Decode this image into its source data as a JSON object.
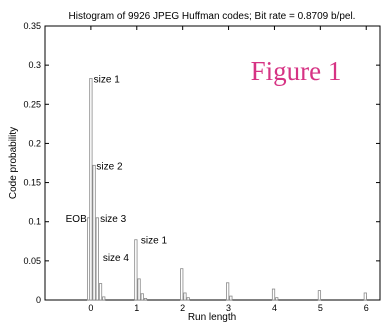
{
  "chart_data": {
    "type": "bar",
    "title": "Histogram of 9926 JPEG Huffman codes; Bit rate = 0.8709 b/pel.",
    "overlay_label": "Figure 1",
    "xlabel": "Run length",
    "ylabel": "Code probability",
    "xlim": [
      -1,
      6.3
    ],
    "ylim": [
      0,
      0.35
    ],
    "xticks": [
      0,
      1,
      2,
      3,
      4,
      5,
      6
    ],
    "yticks": [
      0,
      0.05,
      0.1,
      0.15,
      0.2,
      0.25,
      0.3,
      0.35
    ],
    "ytick_labels": [
      "0",
      "0.05",
      "0.1",
      "0.15",
      "0.2",
      "0.25",
      "0.3",
      "0.35"
    ],
    "bars": [
      {
        "x": -0.05,
        "y": 0.105
      },
      {
        "x": 0.0,
        "y": 0.283
      },
      {
        "x": 0.07,
        "y": 0.172
      },
      {
        "x": 0.14,
        "y": 0.105
      },
      {
        "x": 0.21,
        "y": 0.021
      },
      {
        "x": 0.28,
        "y": 0.004
      },
      {
        "x": 0.98,
        "y": 0.077
      },
      {
        "x": 1.05,
        "y": 0.027
      },
      {
        "x": 1.12,
        "y": 0.008
      },
      {
        "x": 1.19,
        "y": 0.002
      },
      {
        "x": 1.98,
        "y": 0.04
      },
      {
        "x": 2.05,
        "y": 0.009
      },
      {
        "x": 2.12,
        "y": 0.003
      },
      {
        "x": 2.98,
        "y": 0.022
      },
      {
        "x": 3.05,
        "y": 0.005
      },
      {
        "x": 3.98,
        "y": 0.014
      },
      {
        "x": 4.05,
        "y": 0.003
      },
      {
        "x": 4.98,
        "y": 0.012
      },
      {
        "x": 5.98,
        "y": 0.009
      }
    ],
    "annotations": [
      {
        "text": "size 1",
        "x": 0.06,
        "y": 0.283
      },
      {
        "text": "size 2",
        "x": 0.12,
        "y": 0.172
      },
      {
        "text": "EOB",
        "x": -0.55,
        "y": 0.105
      },
      {
        "text": "size 3",
        "x": 0.2,
        "y": 0.105
      },
      {
        "text": "size 4",
        "x": 0.26,
        "y": 0.055
      },
      {
        "text": "size 1",
        "x": 1.09,
        "y": 0.077
      }
    ],
    "grid": false,
    "colors": {
      "bar_stroke": "#8a8a8a",
      "axis": "#000000",
      "figure_label": "#d63384"
    }
  }
}
